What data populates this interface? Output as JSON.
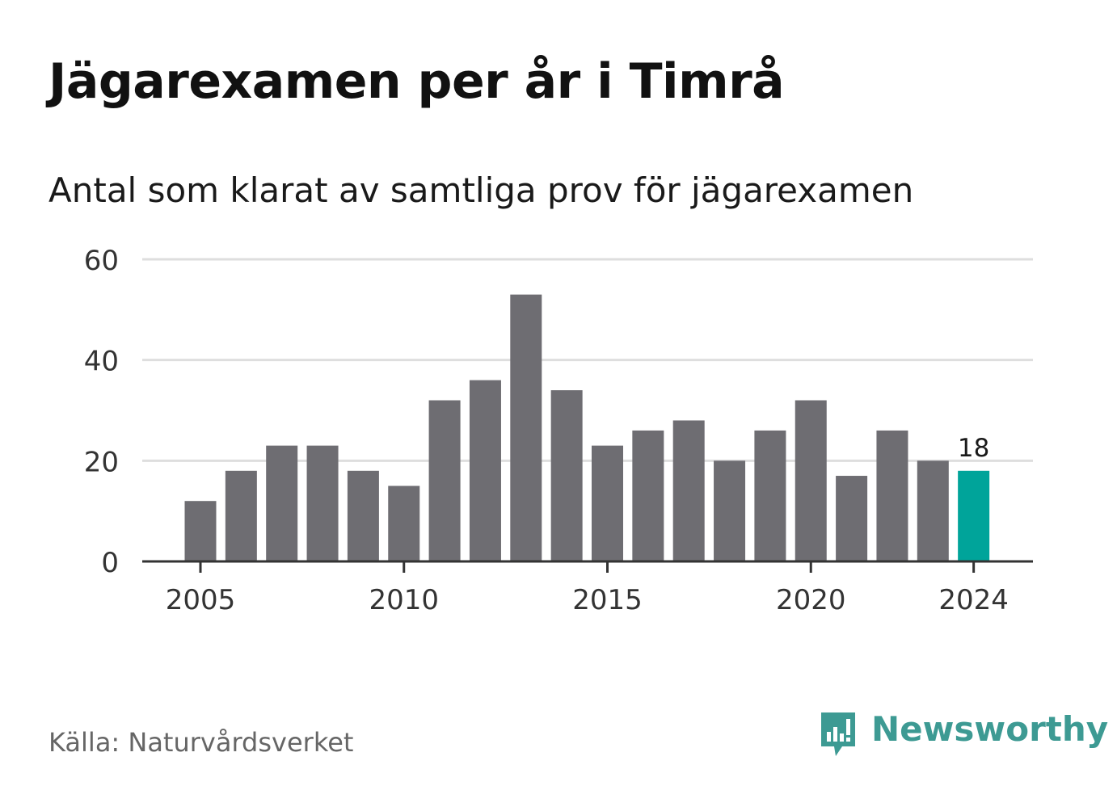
{
  "header": {
    "title": "Jägarexamen per år i Timrå",
    "subtitle": "Antal som klarat av samtliga prov för jägarexamen"
  },
  "footer": {
    "source": "Källa: Naturvårdsverket",
    "brand": "Newsworthy",
    "brand_icon": "bar-chart-speech-bubble-icon"
  },
  "colors": {
    "bar": "#6e6d72",
    "highlight": "#00a49a",
    "grid": "#dedede",
    "axis": "#333333",
    "brand": "#3d9a93"
  },
  "chart_data": {
    "type": "bar",
    "title": "Jägarexamen per år i Timrå",
    "subtitle": "Antal som klarat av samtliga prov för jägarexamen",
    "xlabel": "",
    "ylabel": "",
    "categories": [
      2005,
      2006,
      2007,
      2008,
      2009,
      2010,
      2011,
      2012,
      2013,
      2014,
      2015,
      2016,
      2017,
      2018,
      2019,
      2020,
      2021,
      2022,
      2023,
      2024
    ],
    "values": [
      12,
      18,
      23,
      23,
      18,
      15,
      32,
      36,
      53,
      34,
      23,
      26,
      28,
      20,
      26,
      32,
      17,
      26,
      20,
      18
    ],
    "xticks": [
      "2005",
      "2010",
      "2015",
      "2020",
      "2024"
    ],
    "yticks": [
      0,
      20,
      40,
      60
    ],
    "ylim": [
      0,
      60
    ],
    "grid": true,
    "highlight": {
      "category": 2024,
      "value_label": "18"
    },
    "legend": "none"
  }
}
